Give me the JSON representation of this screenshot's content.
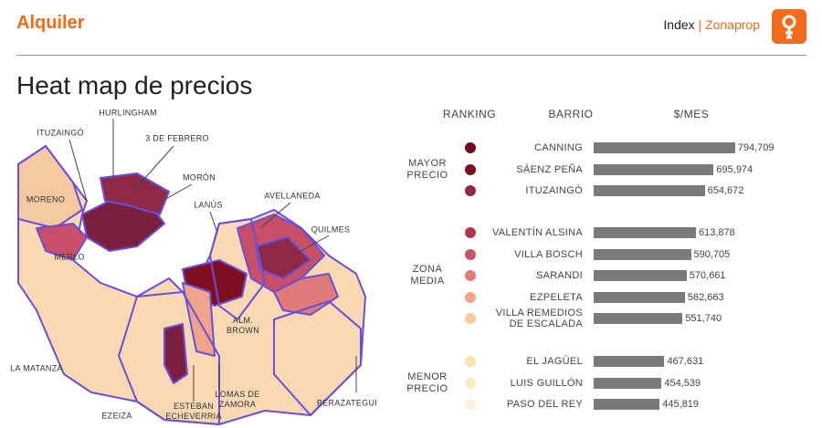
{
  "header": {
    "title": "Alquiler",
    "brand_prefix": "Index",
    "separator": "|",
    "brand": "Zonaprop"
  },
  "title": "Heat map de precios",
  "map": {
    "labels": [
      "HURLINGHAM",
      "ITUZAINGÓ",
      "3 DE FEBRERO",
      "MORÓN",
      "MORENO",
      "LANÚS",
      "AVELLANEDA",
      "QUILMES",
      "MERLO",
      "ALM. BROWN",
      "LA MATANZA",
      "LOMAS DE ZAMORA",
      "ESTEBAN ECHEVERRIA",
      "BERAZATEGUI",
      "EZEIZA"
    ]
  },
  "columns": [
    "RANKING",
    "BARRIO",
    "$/MES"
  ],
  "chart_data": [
    {
      "type": "bar",
      "orientation": "horizontal",
      "title": "MAYOR PRECIO",
      "categories": [
        "CANNING",
        "SÁENZ PEÑA",
        "ITUZAINGÓ"
      ],
      "values": [
        794709,
        695974,
        654672
      ],
      "value_labels": [
        "794,709",
        "695,974",
        "654,672"
      ],
      "dot_colors": [
        "#6e0a1e",
        "#7d0f1f",
        "#8e2a45"
      ],
      "color": "#7a7a7a",
      "xlim": [
        140000,
        800000
      ]
    },
    {
      "type": "bar",
      "orientation": "horizontal",
      "title": "ZONA MEDIA",
      "categories": [
        "VALENTÍN ALSINA",
        "VILLA BOSCH",
        "SARANDI",
        "EZPELETA",
        "VILLA REMEDIOS DE ESCALADA"
      ],
      "values": [
        613878,
        590705,
        570661,
        562663,
        551740
      ],
      "value_labels": [
        "613,878",
        "590,705",
        "570,661",
        "562,663",
        "551,740"
      ],
      "dot_colors": [
        "#b0384e",
        "#c75068",
        "#e07a78",
        "#f0a58a",
        "#f6c9a0"
      ],
      "color": "#7a7a7a",
      "xlim": [
        140000,
        800000
      ]
    },
    {
      "type": "bar",
      "orientation": "horizontal",
      "title": "MENOR PRECIO",
      "categories": [
        "EL JAGÜEL",
        "LUIS GUILLÓN",
        "PASO DEL REY"
      ],
      "values": [
        467631,
        454539,
        445819
      ],
      "value_labels": [
        "467,631",
        "454,539",
        "445,819"
      ],
      "dot_colors": [
        "#f9e2b0",
        "#fbeac2",
        "#fdf1d6"
      ],
      "color": "#7a7a7a",
      "xlim": [
        140000,
        800000
      ]
    }
  ]
}
